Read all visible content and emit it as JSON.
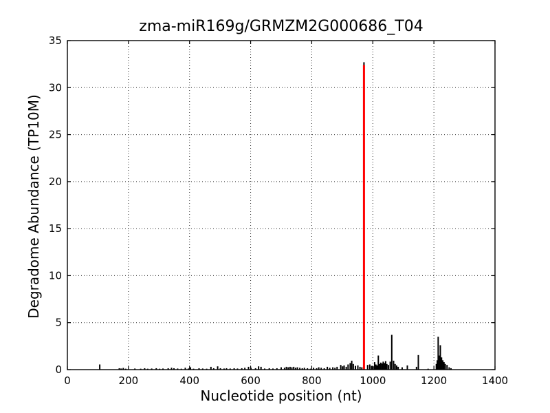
{
  "chart_data": {
    "type": "bar",
    "title": "zma-miR169g/GRMZM2G000686_T04",
    "xlabel": "Nucleotide position (nt)",
    "ylabel": "Degradome Abundance (TP10M)",
    "xlim": [
      0,
      1400
    ],
    "ylim": [
      0,
      35
    ],
    "xticks": [
      0,
      200,
      400,
      600,
      800,
      1000,
      1200,
      1400
    ],
    "yticks": [
      0,
      5,
      10,
      15,
      20,
      25,
      30,
      35
    ],
    "grid": true,
    "grid_style": "dotted",
    "background_color": "#ffffff",
    "bar_color": "#000000",
    "highlight": {
      "x": 971,
      "value": 32.7,
      "red_value": 32.4,
      "color": "#ff0000"
    },
    "bars": [
      [
        106,
        0.55
      ],
      [
        170,
        0.15
      ],
      [
        176,
        0.12
      ],
      [
        183,
        0.18
      ],
      [
        191,
        0.1
      ],
      [
        221,
        0.12
      ],
      [
        240,
        0.1
      ],
      [
        253,
        0.15
      ],
      [
        263,
        0.1
      ],
      [
        276,
        0.12
      ],
      [
        291,
        0.15
      ],
      [
        302,
        0.1
      ],
      [
        313,
        0.12
      ],
      [
        330,
        0.15
      ],
      [
        341,
        0.2
      ],
      [
        349,
        0.15
      ],
      [
        361,
        0.12
      ],
      [
        373,
        0.1
      ],
      [
        386,
        0.2
      ],
      [
        396,
        0.12
      ],
      [
        403,
        0.25
      ],
      [
        413,
        0.1
      ],
      [
        431,
        0.15
      ],
      [
        443,
        0.12
      ],
      [
        456,
        0.1
      ],
      [
        470,
        0.3
      ],
      [
        479,
        0.15
      ],
      [
        492,
        0.35
      ],
      [
        501,
        0.15
      ],
      [
        513,
        0.12
      ],
      [
        521,
        0.15
      ],
      [
        533,
        0.12
      ],
      [
        546,
        0.15
      ],
      [
        557,
        0.12
      ],
      [
        571,
        0.15
      ],
      [
        581,
        0.2
      ],
      [
        593,
        0.3
      ],
      [
        601,
        0.2
      ],
      [
        616,
        0.15
      ],
      [
        626,
        0.35
      ],
      [
        634,
        0.3
      ],
      [
        646,
        0.12
      ],
      [
        661,
        0.15
      ],
      [
        673,
        0.12
      ],
      [
        686,
        0.15
      ],
      [
        700,
        0.25
      ],
      [
        711,
        0.2
      ],
      [
        717,
        0.3
      ],
      [
        723,
        0.25
      ],
      [
        729,
        0.3
      ],
      [
        735,
        0.25
      ],
      [
        741,
        0.3
      ],
      [
        747,
        0.2
      ],
      [
        753,
        0.25
      ],
      [
        761,
        0.2
      ],
      [
        769,
        0.15
      ],
      [
        776,
        0.2
      ],
      [
        786,
        0.15
      ],
      [
        796,
        0.1
      ],
      [
        806,
        0.2
      ],
      [
        816,
        0.15
      ],
      [
        823,
        0.25
      ],
      [
        831,
        0.2
      ],
      [
        841,
        0.15
      ],
      [
        851,
        0.3
      ],
      [
        859,
        0.2
      ],
      [
        869,
        0.25
      ],
      [
        876,
        0.2
      ],
      [
        883,
        0.3
      ],
      [
        895,
        0.5
      ],
      [
        901,
        0.35
      ],
      [
        906,
        0.45
      ],
      [
        913,
        0.3
      ],
      [
        919,
        0.55
      ],
      [
        926,
        0.7
      ],
      [
        931,
        0.95
      ],
      [
        936,
        0.6
      ],
      [
        943,
        0.4
      ],
      [
        951,
        0.45
      ],
      [
        958,
        0.3
      ],
      [
        964,
        0.25
      ],
      [
        983,
        0.5
      ],
      [
        990,
        0.55
      ],
      [
        996,
        0.4
      ],
      [
        1001,
        0.35
      ],
      [
        1006,
        0.8
      ],
      [
        1010,
        0.55
      ],
      [
        1014,
        0.45
      ],
      [
        1018,
        1.5
      ],
      [
        1022,
        0.6
      ],
      [
        1026,
        0.75
      ],
      [
        1030,
        0.65
      ],
      [
        1034,
        0.85
      ],
      [
        1038,
        0.7
      ],
      [
        1042,
        0.9
      ],
      [
        1046,
        0.6
      ],
      [
        1051,
        0.5
      ],
      [
        1057,
        0.85
      ],
      [
        1062,
        3.7
      ],
      [
        1068,
        0.95
      ],
      [
        1073,
        0.6
      ],
      [
        1078,
        0.45
      ],
      [
        1083,
        0.3
      ],
      [
        1096,
        0.25
      ],
      [
        1113,
        0.45
      ],
      [
        1143,
        0.3
      ],
      [
        1149,
        1.55
      ],
      [
        1181,
        0.1
      ],
      [
        1208,
        0.6
      ],
      [
        1211,
        1.0
      ],
      [
        1214,
        3.5
      ],
      [
        1218,
        1.5
      ],
      [
        1221,
        2.6
      ],
      [
        1225,
        1.3
      ],
      [
        1229,
        1.0
      ],
      [
        1233,
        0.8
      ],
      [
        1237,
        0.6
      ],
      [
        1243,
        0.5
      ],
      [
        1250,
        0.25
      ],
      [
        1256,
        0.15
      ]
    ]
  }
}
